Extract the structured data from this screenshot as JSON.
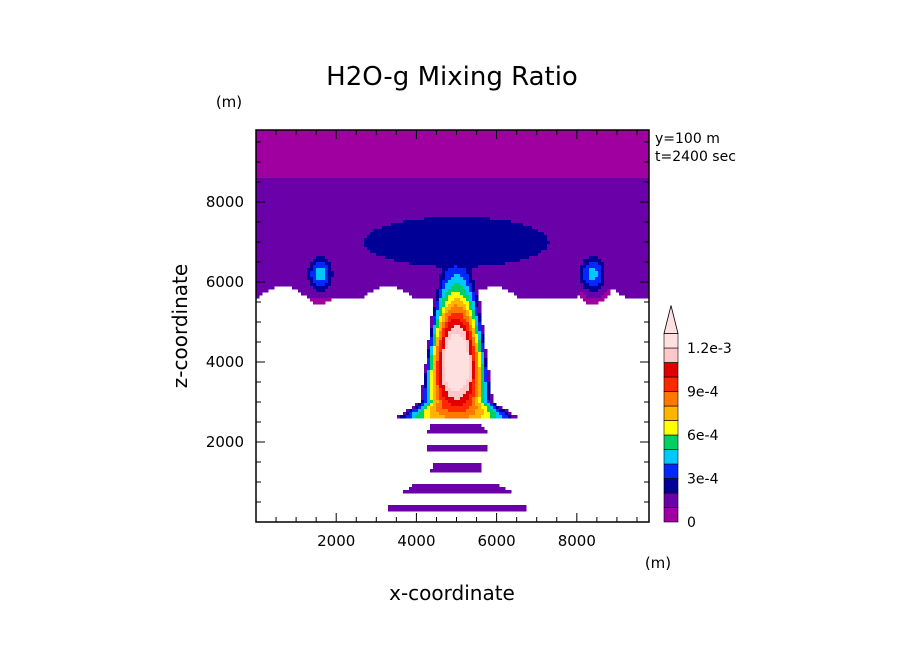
{
  "chart_data": {
    "type": "heatmap",
    "title": "H2O-g Mixing Ratio",
    "xlabel": "x-coordinate",
    "ylabel": "z-coordinate",
    "x_unit": "(m)",
    "y_unit": "(m)",
    "annotations": [
      "y=100 m",
      "t=2400 sec"
    ],
    "xlim": [
      0,
      9800
    ],
    "ylim": [
      0,
      9800
    ],
    "x_ticks": [
      "2000",
      "4000",
      "6000",
      "8000"
    ],
    "x_tick_values": [
      2000,
      4000,
      6000,
      8000
    ],
    "y_ticks": [
      "2000",
      "4000",
      "6000",
      "8000"
    ],
    "y_tick_values": [
      2000,
      4000,
      6000,
      8000
    ],
    "colorbar": {
      "levels": [
        0,
        0.0001,
        0.0002,
        0.0003,
        0.0004,
        0.0005,
        0.0006,
        0.0007,
        0.0008,
        0.0009,
        0.001,
        0.0011,
        0.0012
      ],
      "labels": [
        "0",
        "3e-4",
        "6e-4",
        "9e-4",
        "1.2e-3"
      ],
      "label_values": [
        0,
        0.0003,
        0.0006,
        0.0009,
        0.0012
      ],
      "colors": [
        "#a000a0",
        "#6a00a8",
        "#000096",
        "#0028ff",
        "#00c8ff",
        "#00d060",
        "#ffff00",
        "#ffb400",
        "#ff7800",
        "#ff2800",
        "#e00000",
        "#ffc8c8",
        "#ffe0e0"
      ]
    }
  }
}
